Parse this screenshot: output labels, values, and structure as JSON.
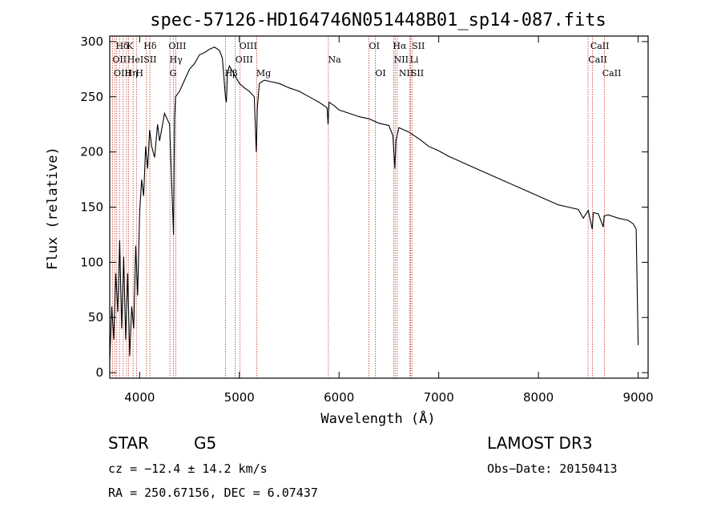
{
  "chart_data": {
    "type": "line",
    "title": "spec-57126-HD164746N051448B01_sp14-087.fits",
    "xlabel": "Wavelength (Å)",
    "ylabel": "Flux (relative)",
    "xlim": [
      3700,
      9100
    ],
    "ylim": [
      -5,
      305
    ],
    "xticks": [
      4000,
      5000,
      6000,
      7000,
      8000,
      9000
    ],
    "yticks": [
      0,
      50,
      100,
      150,
      200,
      250,
      300
    ],
    "series": [
      {
        "name": "flux",
        "x": [
          3700,
          3720,
          3740,
          3760,
          3780,
          3800,
          3820,
          3840,
          3860,
          3880,
          3900,
          3920,
          3940,
          3960,
          3980,
          4000,
          4020,
          4040,
          4060,
          4080,
          4100,
          4120,
          4150,
          4180,
          4200,
          4250,
          4300,
          4330,
          4340,
          4350,
          4360,
          4400,
          4450,
          4500,
          4550,
          4600,
          4650,
          4700,
          4750,
          4800,
          4830,
          4860,
          4870,
          4880,
          4900,
          4950,
          5000,
          5050,
          5100,
          5150,
          5170,
          5180,
          5200,
          5250,
          5300,
          5400,
          5500,
          5600,
          5700,
          5800,
          5880,
          5890,
          5900,
          5950,
          6000,
          6100,
          6200,
          6300,
          6400,
          6500,
          6540,
          6560,
          6570,
          6600,
          6700,
          6800,
          6900,
          7000,
          7100,
          7200,
          7300,
          7400,
          7500,
          7600,
          7700,
          7800,
          7900,
          8000,
          8100,
          8200,
          8300,
          8400,
          8450,
          8500,
          8540,
          8550,
          8600,
          8650,
          8660,
          8700,
          8800,
          8900,
          8950,
          8980,
          9000
        ],
        "y": [
          10,
          60,
          30,
          90,
          55,
          120,
          40,
          105,
          30,
          90,
          15,
          60,
          40,
          115,
          70,
          145,
          175,
          160,
          205,
          185,
          220,
          205,
          195,
          225,
          210,
          235,
          225,
          150,
          125,
          230,
          250,
          255,
          265,
          275,
          280,
          288,
          290,
          293,
          295,
          292,
          285,
          250,
          245,
          270,
          278,
          270,
          262,
          258,
          255,
          250,
          200,
          240,
          262,
          265,
          264,
          262,
          258,
          255,
          250,
          245,
          240,
          225,
          245,
          242,
          238,
          235,
          232,
          230,
          226,
          224,
          215,
          185,
          210,
          222,
          218,
          212,
          205,
          201,
          196,
          192,
          188,
          184,
          180,
          176,
          172,
          168,
          164,
          160,
          156,
          152,
          150,
          148,
          140,
          147,
          130,
          145,
          144,
          132,
          142,
          143,
          140,
          138,
          135,
          130,
          25
        ]
      }
    ],
    "line_labels": [
      {
        "text": "Hδ",
        "x": 3760,
        "row": 0
      },
      {
        "text": "K",
        "x": 3870,
        "row": 0
      },
      {
        "text": "Hδ",
        "x": 4040,
        "row": 0
      },
      {
        "text": "OIII",
        "x": 4290,
        "row": 0
      },
      {
        "text": "OIII",
        "x": 5000,
        "row": 0
      },
      {
        "text": "OI",
        "x": 6300,
        "row": 0
      },
      {
        "text": "Hα",
        "x": 6540,
        "row": 0
      },
      {
        "text": "SII",
        "x": 6730,
        "row": 0
      },
      {
        "text": "CaII",
        "x": 8520,
        "row": 0
      },
      {
        "text": "OII",
        "x": 3727,
        "row": 1
      },
      {
        "text": "HeI",
        "x": 3875,
        "row": 1
      },
      {
        "text": "SII",
        "x": 4040,
        "row": 1
      },
      {
        "text": "Hγ",
        "x": 4300,
        "row": 1
      },
      {
        "text": "OIII",
        "x": 4960,
        "row": 1
      },
      {
        "text": "Na",
        "x": 5890,
        "row": 1
      },
      {
        "text": "NII",
        "x": 6550,
        "row": 1
      },
      {
        "text": "Li",
        "x": 6710,
        "row": 1
      },
      {
        "text": "CaII",
        "x": 8500,
        "row": 1
      },
      {
        "text": "OIII",
        "x": 3740,
        "row": 2
      },
      {
        "text": "Hη",
        "x": 3850,
        "row": 2
      },
      {
        "text": "H",
        "x": 3960,
        "row": 2
      },
      {
        "text": "G",
        "x": 4300,
        "row": 2
      },
      {
        "text": "Hβ",
        "x": 4855,
        "row": 2
      },
      {
        "text": "Mg",
        "x": 5170,
        "row": 2
      },
      {
        "text": "OI",
        "x": 6363,
        "row": 2
      },
      {
        "text": "NII",
        "x": 6600,
        "row": 2
      },
      {
        "text": "SII",
        "x": 6720,
        "row": 2
      },
      {
        "text": "CaII",
        "x": 8640,
        "row": 2
      }
    ],
    "line_markers": [
      3727,
      3750,
      3770,
      3798,
      3835,
      3869,
      3889,
      3934,
      3968,
      4068,
      4102,
      4304,
      4340,
      4363,
      4861,
      4959,
      5007,
      5175,
      5893,
      6300,
      6363,
      6548,
      6563,
      6583,
      6708,
      6717,
      6731,
      8498,
      8542,
      8662
    ],
    "line_color": "#c0392b"
  },
  "info": {
    "class_label": "STAR",
    "subclass": "G5",
    "survey": "LAMOST DR3",
    "cz": "cz = −12.4 ± 14.2 km/s",
    "obs_date": "Obs−Date: 20150413",
    "radec": "RA = 250.67156, DEC =   6.07437"
  }
}
